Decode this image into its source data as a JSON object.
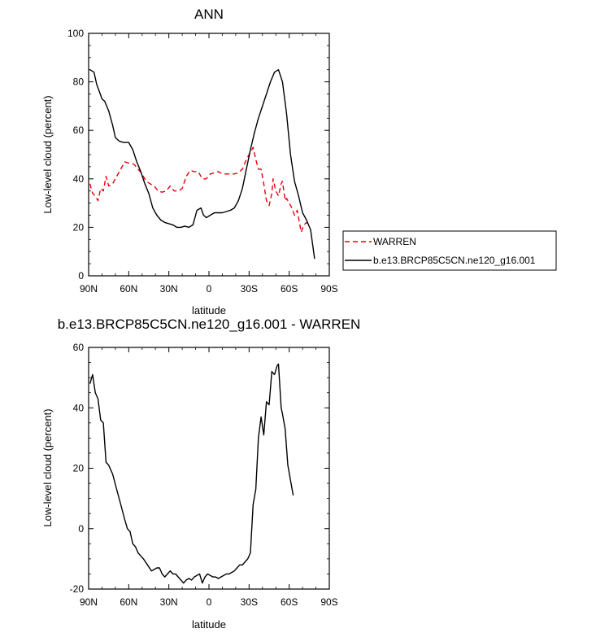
{
  "chart_data": [
    {
      "type": "line",
      "title": "ANN",
      "xlabel": "latitude",
      "ylabel": "Low-level cloud (percent)",
      "xlim": [
        -90,
        90
      ],
      "ylim": [
        0,
        100
      ],
      "x_tick_values": [
        -90,
        -60,
        -30,
        0,
        30,
        60,
        90
      ],
      "x_tick_labels": [
        "90N",
        "60N",
        "30N",
        "0",
        "30S",
        "60S",
        "90S"
      ],
      "y_ticks": [
        0,
        20,
        40,
        60,
        80,
        100
      ],
      "grid": false,
      "legend_position": "right",
      "series": [
        {
          "name": "WARREN",
          "color": "#e8000b",
          "dash": "dashed",
          "points": [
            [
              -89,
              38
            ],
            [
              -87,
              34
            ],
            [
              -85,
              33
            ],
            [
              -83,
              31
            ],
            [
              -81,
              36
            ],
            [
              -79,
              35
            ],
            [
              -77,
              41
            ],
            [
              -75,
              37
            ],
            [
              -72,
              38
            ],
            [
              -69,
              41
            ],
            [
              -66,
              44
            ],
            [
              -63,
              47
            ],
            [
              -60,
              46.5
            ],
            [
              -56,
              46
            ],
            [
              -53,
              44
            ],
            [
              -50,
              42
            ],
            [
              -47,
              39
            ],
            [
              -44,
              38
            ],
            [
              -41,
              37
            ],
            [
              -38,
              35
            ],
            [
              -35,
              34.5
            ],
            [
              -32,
              35
            ],
            [
              -29,
              37
            ],
            [
              -26,
              35
            ],
            [
              -23,
              35
            ],
            [
              -20,
              36
            ],
            [
              -17,
              41
            ],
            [
              -14,
              43.5
            ],
            [
              -11,
              43
            ],
            [
              -8,
              43
            ],
            [
              -5,
              40
            ],
            [
              -2,
              40
            ],
            [
              1,
              42
            ],
            [
              4,
              42.5
            ],
            [
              7,
              43
            ],
            [
              10,
              42
            ],
            [
              13,
              42
            ],
            [
              16,
              42
            ],
            [
              19,
              42
            ],
            [
              22,
              42.5
            ],
            [
              25,
              44
            ],
            [
              28,
              48
            ],
            [
              31,
              51
            ],
            [
              33,
              53
            ],
            [
              35,
              48
            ],
            [
              37,
              44
            ],
            [
              39,
              44
            ],
            [
              41,
              38
            ],
            [
              43,
              31
            ],
            [
              45,
              29
            ],
            [
              47,
              34
            ],
            [
              48,
              40
            ],
            [
              50,
              35
            ],
            [
              52,
              33
            ],
            [
              54,
              38
            ],
            [
              55,
              39
            ],
            [
              57,
              31
            ],
            [
              58,
              32
            ],
            [
              60,
              30
            ],
            [
              62,
              28
            ],
            [
              64,
              25
            ],
            [
              66,
              27
            ],
            [
              67,
              24
            ],
            [
              69,
              18
            ],
            [
              71,
              21
            ],
            [
              73,
              22
            ],
            [
              75,
              21
            ]
          ]
        },
        {
          "name": "b.e13.BRCP85C5CN.ne120_g16.001",
          "color": "#000000",
          "dash": "solid",
          "points": [
            [
              -89,
              85
            ],
            [
              -86,
              84
            ],
            [
              -84,
              79
            ],
            [
              -82,
              76
            ],
            [
              -80,
              73
            ],
            [
              -78,
              72
            ],
            [
              -75,
              68
            ],
            [
              -72,
              62
            ],
            [
              -70,
              57
            ],
            [
              -67,
              55.5
            ],
            [
              -64,
              55
            ],
            [
              -60,
              55
            ],
            [
              -57,
              52
            ],
            [
              -54,
              47
            ],
            [
              -51,
              43
            ],
            [
              -48,
              38
            ],
            [
              -45,
              34
            ],
            [
              -42,
              28
            ],
            [
              -39,
              25
            ],
            [
              -36,
              23
            ],
            [
              -33,
              22
            ],
            [
              -30,
              21.5
            ],
            [
              -27,
              21
            ],
            [
              -24,
              20
            ],
            [
              -21,
              20
            ],
            [
              -18,
              20.5
            ],
            [
              -15,
              20
            ],
            [
              -12,
              21
            ],
            [
              -9,
              27
            ],
            [
              -6,
              28
            ],
            [
              -4,
              25
            ],
            [
              -2,
              24
            ],
            [
              1,
              25
            ],
            [
              4,
              26
            ],
            [
              7,
              26
            ],
            [
              10,
              26
            ],
            [
              13,
              26.5
            ],
            [
              16,
              27
            ],
            [
              19,
              28
            ],
            [
              22,
              31
            ],
            [
              25,
              36
            ],
            [
              28,
              44
            ],
            [
              31,
              52
            ],
            [
              34,
              59
            ],
            [
              37,
              65
            ],
            [
              40,
              70
            ],
            [
              43,
              75
            ],
            [
              46,
              80
            ],
            [
              49,
              84
            ],
            [
              52,
              85
            ],
            [
              55,
              80
            ],
            [
              58,
              67
            ],
            [
              61,
              50
            ],
            [
              64,
              39
            ],
            [
              67,
              33
            ],
            [
              70,
              26
            ],
            [
              73,
              23
            ],
            [
              76,
              19
            ],
            [
              79,
              7
            ]
          ]
        }
      ]
    },
    {
      "type": "line",
      "title": "b.e13.BRCP85C5CN.ne120_g16.001 - WARREN",
      "xlabel": "latitude",
      "ylabel": "Low-level cloud (percent)",
      "xlim": [
        -90,
        90
      ],
      "ylim": [
        -20,
        60
      ],
      "x_tick_values": [
        -90,
        -60,
        -30,
        0,
        30,
        60,
        90
      ],
      "x_tick_labels": [
        "90N",
        "60N",
        "30N",
        "0",
        "30S",
        "60S",
        "90S"
      ],
      "y_ticks": [
        -20,
        0,
        20,
        40,
        60
      ],
      "grid": false,
      "series": [
        {
          "color": "#000000",
          "dash": "solid",
          "points": [
            [
              -89,
              48
            ],
            [
              -87,
              51
            ],
            [
              -85,
              45
            ],
            [
              -83,
              43
            ],
            [
              -81,
              36
            ],
            [
              -79,
              35
            ],
            [
              -77,
              22
            ],
            [
              -75,
              21
            ],
            [
              -72,
              18
            ],
            [
              -69,
              13
            ],
            [
              -66,
              8
            ],
            [
              -63,
              3
            ],
            [
              -61,
              0
            ],
            [
              -59,
              -1
            ],
            [
              -57,
              -5
            ],
            [
              -55,
              -6
            ],
            [
              -53,
              -8
            ],
            [
              -51,
              -9
            ],
            [
              -49,
              -10
            ],
            [
              -46,
              -12
            ],
            [
              -43,
              -14
            ],
            [
              -41,
              -13.5
            ],
            [
              -39,
              -13
            ],
            [
              -37,
              -13
            ],
            [
              -35,
              -15
            ],
            [
              -33,
              -16
            ],
            [
              -31,
              -15
            ],
            [
              -29,
              -14
            ],
            [
              -27,
              -15
            ],
            [
              -25,
              -15
            ],
            [
              -23,
              -16
            ],
            [
              -21,
              -17
            ],
            [
              -19,
              -18
            ],
            [
              -17,
              -17
            ],
            [
              -15,
              -16.5
            ],
            [
              -13,
              -17
            ],
            [
              -11,
              -16
            ],
            [
              -9,
              -15.5
            ],
            [
              -7,
              -15
            ],
            [
              -5,
              -18
            ],
            [
              -3,
              -16
            ],
            [
              -1,
              -15
            ],
            [
              1,
              -15.5
            ],
            [
              3,
              -16
            ],
            [
              5,
              -16
            ],
            [
              7,
              -16.5
            ],
            [
              9,
              -16
            ],
            [
              11,
              -15.5
            ],
            [
              13,
              -15
            ],
            [
              15,
              -15
            ],
            [
              17,
              -14.5
            ],
            [
              19,
              -14
            ],
            [
              21,
              -13
            ],
            [
              23,
              -12
            ],
            [
              25,
              -12
            ],
            [
              27,
              -11
            ],
            [
              29,
              -10
            ],
            [
              31,
              -8
            ],
            [
              33,
              8
            ],
            [
              35,
              13
            ],
            [
              37,
              30
            ],
            [
              39,
              37
            ],
            [
              41,
              31
            ],
            [
              43,
              42
            ],
            [
              45,
              41
            ],
            [
              47,
              52
            ],
            [
              49,
              51
            ],
            [
              51,
              54
            ],
            [
              52,
              54.5
            ],
            [
              54,
              40
            ],
            [
              55,
              38
            ],
            [
              57,
              33
            ],
            [
              59,
              21
            ],
            [
              61,
              16
            ],
            [
              63,
              11
            ]
          ]
        }
      ]
    }
  ]
}
